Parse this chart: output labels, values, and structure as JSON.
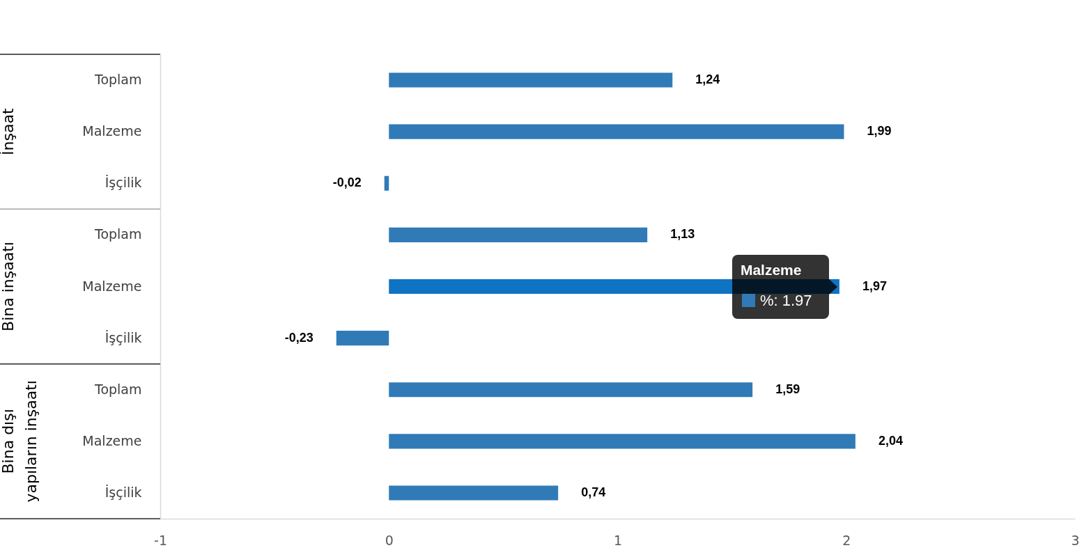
{
  "chart_data": {
    "type": "bar",
    "orientation": "horizontal",
    "categories": [
      "Toplam",
      "Malzeme",
      "İşçilik",
      "Toplam",
      "Malzeme",
      "İşçilik",
      "Toplam",
      "Malzeme",
      "İşçilik"
    ],
    "values": [
      1.24,
      1.99,
      -0.02,
      1.13,
      1.97,
      -0.23,
      1.59,
      2.04,
      0.74
    ],
    "value_labels": [
      "1,24",
      "1,99",
      "-0,02",
      "1,13",
      "1,97",
      "-0,23",
      "1,59",
      "2,04",
      "0,74"
    ],
    "color": "#307bb7",
    "colors": [
      "#307bb7",
      "#307bb7",
      "#307bb7",
      "#307bb7",
      "#0f73c4",
      "#307bb7",
      "#307bb7",
      "#307bb7",
      "#307bb7"
    ],
    "xlim": [
      -1,
      3
    ],
    "xticks": [
      -1,
      0,
      1,
      2,
      3
    ],
    "annotations": [
      "İnşaat",
      "Bina inşaatı",
      "Bina dışı yapıların inşaatı",
      "Malzeme\n%: 1.97"
    ]
  }
}
